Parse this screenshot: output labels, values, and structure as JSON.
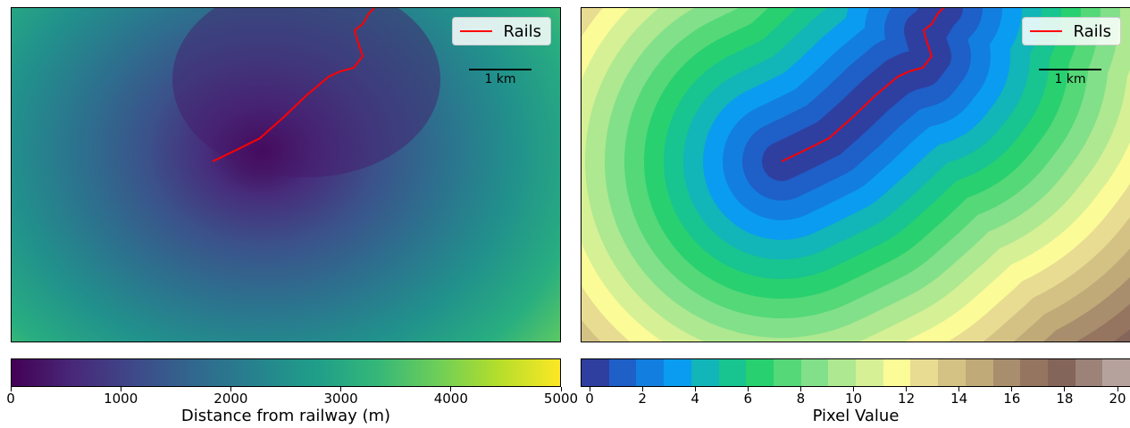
{
  "chart_data": [
    {
      "type": "heatmap",
      "colormap": "viridis",
      "colorbar": {
        "label": "Distance from railway (m)",
        "range": [
          0,
          5000
        ],
        "ticks": [
          0,
          1000,
          2000,
          3000,
          4000,
          5000
        ],
        "tick_labels": [
          "0",
          "1000",
          "2000",
          "3000",
          "4000",
          "5000"
        ]
      },
      "legend": {
        "entries": [
          {
            "label": "Rails",
            "color": "#ff0000"
          }
        ],
        "position": "top-right"
      },
      "scalebar_label": "1 km"
    },
    {
      "type": "heatmap",
      "colormap": "terrain",
      "colorbar": {
        "label": "Pixel Value",
        "range": [
          0,
          20
        ],
        "ticks": [
          0,
          2,
          4,
          6,
          8,
          10,
          12,
          14,
          16,
          18,
          20
        ],
        "tick_labels": [
          "0",
          "2",
          "4",
          "6",
          "8",
          "10",
          "12",
          "14",
          "16",
          "18",
          "20"
        ],
        "classes": 20
      },
      "legend": {
        "entries": [
          {
            "label": "Rails",
            "color": "#ff0000"
          }
        ],
        "position": "top-right"
      },
      "scalebar_label": "1 km"
    }
  ],
  "colors": {
    "rails": "#ff0000",
    "terrain_bins": [
      "#2f3fa0",
      "#1e5fc8",
      "#127fe0",
      "#0a9cf0",
      "#12b5b8",
      "#18c490",
      "#28d070",
      "#55d878",
      "#82e08a",
      "#aee890",
      "#d6f095",
      "#fbfb98",
      "#e8dc92",
      "#d4c285",
      "#c0aa78",
      "#a88e6c",
      "#957460",
      "#84655a",
      "#9c8278",
      "#b6a29c"
    ]
  }
}
